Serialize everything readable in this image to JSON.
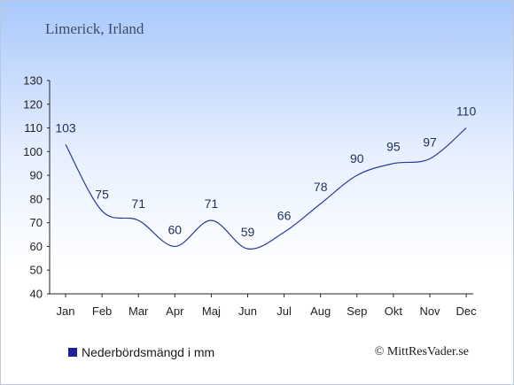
{
  "chart_data": {
    "type": "line",
    "subtitle": "Limerick, Irland",
    "categories": [
      "Jan",
      "Feb",
      "Mar",
      "Apr",
      "Maj",
      "Jun",
      "Jul",
      "Aug",
      "Sep",
      "Okt",
      "Nov",
      "Dec"
    ],
    "series": [
      {
        "name": "Nederbördsmängd i mm",
        "values": [
          103,
          75,
          71,
          60,
          71,
          59,
          66,
          78,
          90,
          95,
          97,
          110
        ]
      }
    ],
    "yticks": [
      40,
      50,
      60,
      70,
      80,
      90,
      100,
      110,
      120,
      130
    ],
    "ylim": [
      40,
      130
    ],
    "grid": false,
    "legend_position": "bottom-left",
    "colors": {
      "line": "#2a3a9c",
      "legend_swatch": "#1f1fa0",
      "label": "#1f2f5a"
    }
  },
  "credit": "© MittResVader.se"
}
